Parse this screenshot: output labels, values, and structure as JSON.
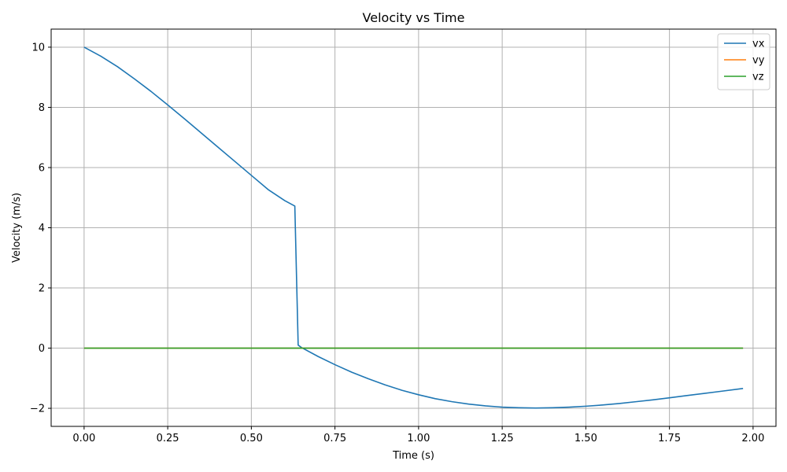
{
  "chart_data": {
    "type": "line",
    "title": "Velocity vs Time",
    "xlabel": "Time (s)",
    "ylabel": "Velocity (m/s)",
    "xlim": [
      -0.0985,
      2.0685
    ],
    "ylim": [
      -2.6,
      10.6
    ],
    "x_ticks": [
      0.0,
      0.25,
      0.5,
      0.75,
      1.0,
      1.25,
      1.5,
      1.75,
      2.0
    ],
    "x_tick_labels": [
      "0.00",
      "0.25",
      "0.50",
      "0.75",
      "1.00",
      "1.25",
      "1.50",
      "1.75",
      "2.00"
    ],
    "y_ticks": [
      -2,
      0,
      2,
      4,
      6,
      8,
      10
    ],
    "y_tick_labels": [
      "−2",
      "0",
      "2",
      "4",
      "6",
      "8",
      "10"
    ],
    "grid": true,
    "legend_position": "top-right",
    "series": [
      {
        "name": "vx",
        "color": "#1f77b4",
        "x": [
          0.0,
          0.05,
          0.1,
          0.15,
          0.2,
          0.25,
          0.3,
          0.35,
          0.4,
          0.45,
          0.5,
          0.55,
          0.6,
          0.63,
          0.64,
          0.65,
          0.7,
          0.75,
          0.8,
          0.85,
          0.9,
          0.95,
          1.0,
          1.05,
          1.1,
          1.15,
          1.2,
          1.25,
          1.3,
          1.35,
          1.4,
          1.45,
          1.5,
          1.55,
          1.6,
          1.65,
          1.7,
          1.75,
          1.8,
          1.85,
          1.9,
          1.97
        ],
        "y": [
          10.0,
          9.7,
          9.35,
          8.95,
          8.53,
          8.08,
          7.62,
          7.15,
          6.68,
          6.21,
          5.74,
          5.27,
          4.9,
          4.72,
          0.1,
          0.02,
          -0.28,
          -0.55,
          -0.8,
          -1.02,
          -1.22,
          -1.4,
          -1.55,
          -1.68,
          -1.78,
          -1.86,
          -1.92,
          -1.96,
          -1.98,
          -1.99,
          -1.98,
          -1.96,
          -1.93,
          -1.89,
          -1.84,
          -1.78,
          -1.72,
          -1.65,
          -1.58,
          -1.51,
          -1.44,
          -1.34
        ]
      },
      {
        "name": "vy",
        "color": "#ff7f0e",
        "x": [
          0.0,
          1.97
        ],
        "y": [
          0.0,
          0.0
        ]
      },
      {
        "name": "vz",
        "color": "#2ca02c",
        "x": [
          0.0,
          1.97
        ],
        "y": [
          0.0,
          0.0
        ]
      }
    ]
  }
}
